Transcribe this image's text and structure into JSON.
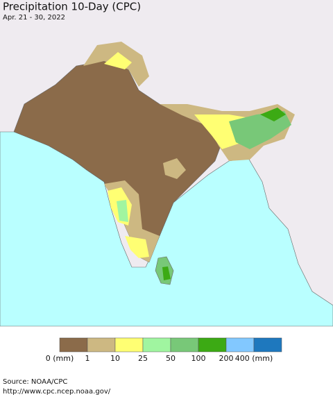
{
  "header": {
    "title": "Precipitation 10-Day (CPC)",
    "subtitle": "Apr. 21 - 30, 2022"
  },
  "legend": {
    "labels": [
      "0 (mm)",
      "1",
      "10",
      "25",
      "50",
      "100",
      "200",
      "400 (mm)"
    ],
    "colors": [
      "#8b6b4a",
      "#cdb882",
      "#ffff73",
      "#a0f5a0",
      "#78c878",
      "#3caa14",
      "#82c8ff",
      "#1e78be"
    ]
  },
  "footer": {
    "source": "Source: NOAA/CPC",
    "url": "http://www.cpc.ncep.noaa.gov/"
  }
}
